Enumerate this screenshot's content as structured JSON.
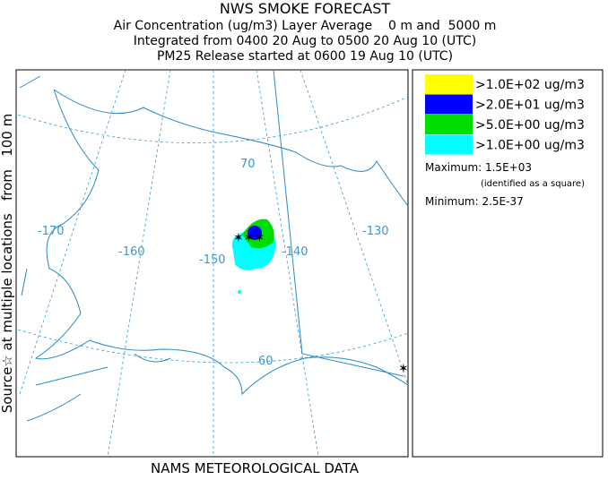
{
  "header": {
    "title": "NWS SMOKE FORECAST",
    "lines": [
      "Air Concentration (ug/m3) Layer Average    0 m and  5000 m",
      "Integrated from 0400 20 Aug to 0500 20 Aug 10 (UTC)",
      "PM25 Release started at 0600 19 Aug 10 (UTC)"
    ]
  },
  "side_label": "Source☆ at multiple locations   from   100 m",
  "footer": "NAMS METEOROLOGICAL DATA",
  "legend": {
    "items": [
      {
        "label": ">1.0E+02 ug/m3",
        "color": "#ffff00"
      },
      {
        "label": ">2.0E+01 ug/m3",
        "color": "#0000ff"
      },
      {
        "label": ">5.0E+00 ug/m3",
        "color": "#00dd00"
      },
      {
        "label": ">1.0E+00 ug/m3",
        "color": "#00ffff"
      }
    ],
    "maximum": "Maximum: 1.5E+03",
    "max_note": "(identified as a square)",
    "minimum": "Minimum: 2.5E-37"
  },
  "map": {
    "labels": [
      "-170",
      "-160",
      "-150",
      "-140",
      "-130",
      "70",
      "60"
    ]
  }
}
